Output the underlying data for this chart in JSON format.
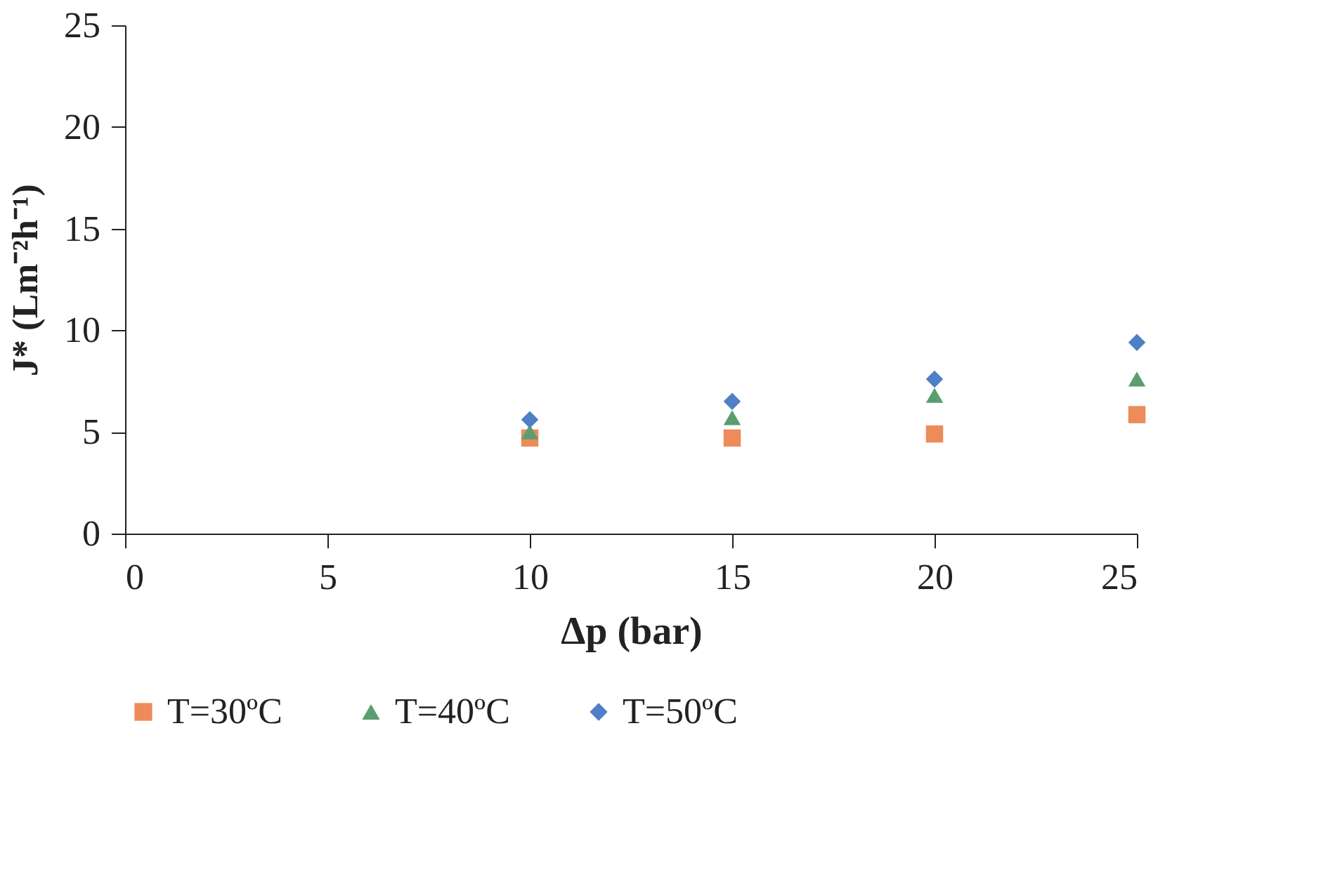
{
  "chart_data": {
    "type": "scatter",
    "xlabel": "Δp (bar)",
    "ylabel": "J* (Lm⁻²h⁻¹)",
    "x": [
      10,
      15,
      20,
      25
    ],
    "series": [
      {
        "name": "T=30ºC",
        "color": "#ed8b5b",
        "marker": "square",
        "values": [
          4.7,
          4.7,
          4.9,
          5.85
        ]
      },
      {
        "name": "T=40ºC",
        "color": "#5a9e6f",
        "marker": "triangle",
        "values": [
          5.0,
          5.7,
          6.8,
          7.6
        ]
      },
      {
        "name": "T=50ºC",
        "color": "#4f7fc4",
        "marker": "diamond",
        "values": [
          5.6,
          6.5,
          7.6,
          9.4
        ]
      }
    ],
    "xlim": [
      0,
      25
    ],
    "xticks": [
      0,
      5,
      10,
      15,
      20,
      25
    ],
    "ylim": [
      0,
      25
    ],
    "yticks": [
      0,
      5,
      10,
      15,
      20,
      25
    ],
    "grid": false,
    "legend": "bottom"
  }
}
